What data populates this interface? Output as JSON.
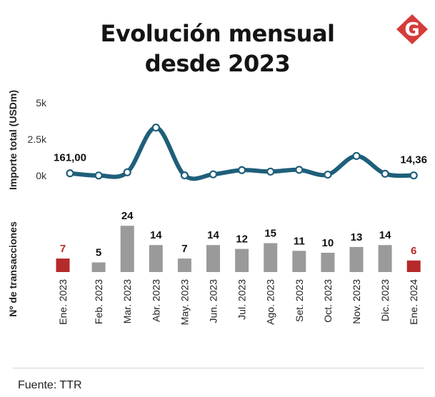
{
  "header": {
    "title_line1": "Evolución mensual",
    "title_line2": "desde 2023"
  },
  "logo": {
    "letter": "G",
    "color": "#d63b3b"
  },
  "colors": {
    "line": "#1f5f7a",
    "bar": "#9a9a9a",
    "bar_highlight": "#b52a2a",
    "label_highlight": "#b52a2a"
  },
  "chart_data": [
    {
      "type": "line",
      "ylabel": "Importe total (USDm)",
      "yticks": [
        "5k",
        "2.5k",
        "0k"
      ],
      "ylim": [
        0,
        5000
      ],
      "categories": [
        "Ene. 2023",
        "Feb. 2023",
        "Mar. 2023",
        "Abr. 2023",
        "May. 2023",
        "Jun. 2023",
        "Jul. 2023",
        "Ago. 2023",
        "Set. 2023",
        "Oct. 2023",
        "Nov. 2023",
        "Dic. 2023",
        "Ene. 2024"
      ],
      "values": [
        161,
        10,
        230,
        3300,
        20,
        90,
        380,
        280,
        400,
        70,
        1350,
        130,
        14.36
      ],
      "data_labels": [
        {
          "index": 0,
          "text": "161,00"
        },
        {
          "index": 12,
          "text": "14,36"
        }
      ]
    },
    {
      "type": "bar",
      "ylabel": "Nº de transacciones",
      "categories": [
        "Ene. 2023",
        "Feb. 2023",
        "Mar. 2023",
        "Abr. 2023",
        "May. 2023",
        "Jun. 2023",
        "Jul. 2023",
        "Ago. 2023",
        "Set. 2023",
        "Oct. 2023",
        "Nov. 2023",
        "Dic. 2023",
        "Ene. 2024"
      ],
      "values": [
        7,
        5,
        24,
        14,
        7,
        14,
        12,
        15,
        11,
        10,
        13,
        14,
        6
      ],
      "highlighted": [
        0,
        12
      ]
    }
  ],
  "footer": {
    "source": "Fuente: TTR"
  }
}
